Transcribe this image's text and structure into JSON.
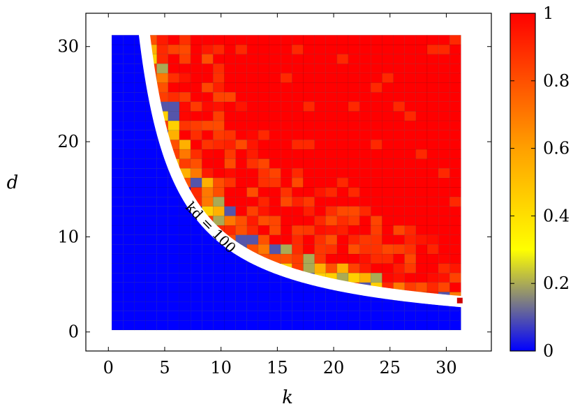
{
  "chart_data": {
    "type": "heatmap",
    "title": "",
    "xlabel": "k",
    "ylabel": "d",
    "xlim": [
      -2,
      34
    ],
    "ylim": [
      -2,
      33.5
    ],
    "xticks": [
      "0",
      "5",
      "10",
      "15",
      "20",
      "25",
      "30"
    ],
    "yticks": [
      "0",
      "10",
      "20",
      "30"
    ],
    "cells": {
      "k_range": [
        0.3,
        30.7
      ],
      "d_range": [
        0.2,
        30.8
      ],
      "step": 1,
      "region_below_curve_value": 0,
      "region_above_curve_value": 1,
      "transition_band_values": [
        0.45,
        0.55,
        0.7,
        0.8,
        0.85,
        0.9,
        0.2,
        0.1
      ]
    },
    "curve": {
      "equation": "kd = 100",
      "label": "kd = 100",
      "color": "#ffffff"
    },
    "marker": {
      "k": 31.2,
      "d": 3.3,
      "color": "#cc0000"
    },
    "colorbar": {
      "min": 0,
      "max": 1,
      "ticks": [
        "0",
        "0.2",
        "0.4",
        "0.6",
        "0.8",
        "1"
      ],
      "stops": [
        {
          "value": 0,
          "color": "#0000ff"
        },
        {
          "value": 0.15,
          "color": "#808080"
        },
        {
          "value": 0.3,
          "color": "#ffff00"
        },
        {
          "value": 0.6,
          "color": "#ffa000"
        },
        {
          "value": 1,
          "color": "#ff0000"
        }
      ]
    }
  }
}
